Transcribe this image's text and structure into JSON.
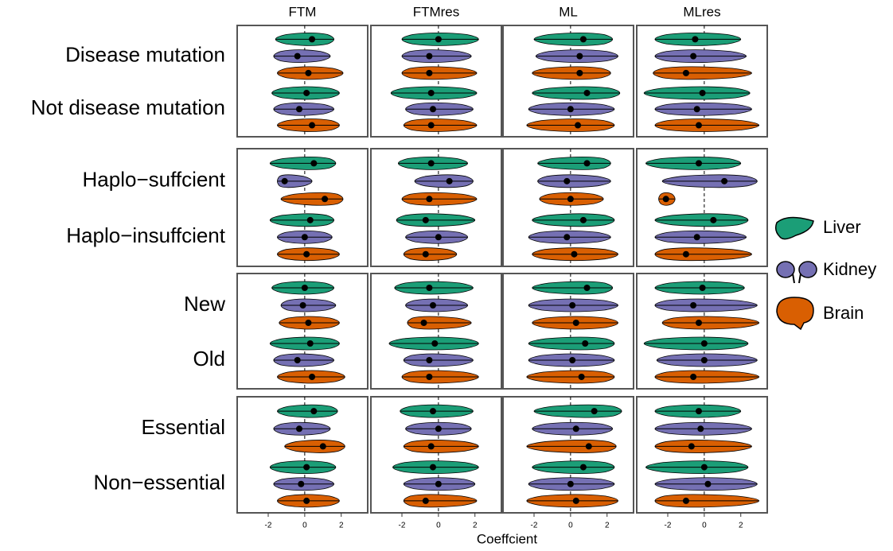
{
  "chart_data": {
    "type": "violin",
    "xlabel": "Coeffcient",
    "columns": [
      "FTM",
      "FTMres",
      "ML",
      "MLres"
    ],
    "xlim": [
      -3.7,
      3.45
    ],
    "xticks": [
      -2,
      0,
      2
    ],
    "reference_line": 0,
    "series": [
      {
        "name": "Liver",
        "color": "#1b9e77"
      },
      {
        "name": "Kidney",
        "color": "#7570b3"
      },
      {
        "name": "Brain",
        "color": "#d95f02"
      }
    ],
    "rows": [
      {
        "labels": [
          "Disease mutation",
          "Not disease mutation"
        ],
        "cells": [
          [
            [
              -1.6,
              0.4,
              1.6
            ],
            [
              -1.7,
              -0.4,
              1.4
            ],
            [
              -1.5,
              0.2,
              2.1
            ],
            [
              -1.8,
              0.1,
              1.9
            ],
            [
              -1.7,
              -0.3,
              1.6
            ],
            [
              -1.5,
              0.4,
              1.9
            ]
          ],
          [
            [
              -2,
              0,
              2.2
            ],
            [
              -2,
              -0.5,
              1.8
            ],
            [
              -2,
              -0.5,
              2.1
            ],
            [
              -2.6,
              -0.4,
              2.1
            ],
            [
              -1.8,
              -0.3,
              1.9
            ],
            [
              -1.9,
              -0.4,
              2.1
            ]
          ],
          [
            [
              -2,
              0.7,
              2.3
            ],
            [
              -1.9,
              0.5,
              2.6
            ],
            [
              -2.1,
              0.5,
              2.2
            ],
            [
              -2.1,
              0.9,
              2.7
            ],
            [
              -2.3,
              0,
              2.4
            ],
            [
              -2.4,
              0.4,
              2.4
            ]
          ],
          [
            [
              -2.7,
              -0.5,
              2
            ],
            [
              -2.7,
              -0.6,
              2.3
            ],
            [
              -2.8,
              -1,
              2.6
            ],
            [
              -3.3,
              -0.1,
              2.5
            ],
            [
              -2.7,
              -0.4,
              2.6
            ],
            [
              -2.7,
              -0.3,
              3
            ]
          ]
        ]
      },
      {
        "labels": [
          "Haplo−suffcient",
          "Haplo−insuffcient"
        ],
        "cells": [
          [
            [
              -1.9,
              0.5,
              1.7
            ],
            [
              -1.5,
              -1.1,
              0.4
            ],
            [
              -1.3,
              1.1,
              2.1
            ],
            [
              -1.9,
              0.3,
              1.6
            ],
            [
              -1.5,
              0,
              1.5
            ],
            [
              -1.5,
              0.1,
              1.9
            ]
          ],
          [
            [
              -2.2,
              -0.4,
              1.6
            ],
            [
              -1.3,
              0.6,
              1.9
            ],
            [
              -2,
              -0.5,
              2.1
            ],
            [
              -2.3,
              -0.7,
              2
            ],
            [
              -1.8,
              0,
              1.6
            ],
            [
              -1.9,
              -0.7,
              1
            ]
          ],
          [
            [
              -1.8,
              0.9,
              2.2
            ],
            [
              -1.8,
              -0.2,
              2.2
            ],
            [
              -1.7,
              0,
              1.8
            ],
            [
              -2.1,
              0.7,
              2.4
            ],
            [
              -2.3,
              -0.2,
              2.2
            ],
            [
              -2.1,
              0.2,
              2.6
            ]
          ],
          [
            [
              -3.2,
              -0.3,
              2
            ],
            [
              -2.3,
              1.1,
              2.9
            ],
            [
              -2.5,
              -2.1,
              -1.6
            ],
            [
              -2.7,
              0.5,
              2.4
            ],
            [
              -2.7,
              -0.4,
              2.3
            ],
            [
              -2.7,
              -1,
              2.6
            ]
          ]
        ]
      },
      {
        "labels": [
          "New",
          "Old"
        ],
        "cells": [
          [
            [
              -1.8,
              0,
              1.6
            ],
            [
              -1.3,
              -0.1,
              1.7
            ],
            [
              -1.4,
              0.2,
              1.9
            ],
            [
              -1.9,
              0.3,
              1.9
            ],
            [
              -1.7,
              -0.4,
              1.6
            ],
            [
              -1.5,
              0.4,
              2.2
            ]
          ],
          [
            [
              -2.4,
              -0.5,
              1.9
            ],
            [
              -1.8,
              -0.3,
              1.6
            ],
            [
              -1.7,
              -0.8,
              1.8
            ],
            [
              -2.7,
              -0.2,
              2.2
            ],
            [
              -1.9,
              -0.5,
              1.9
            ],
            [
              -2,
              -0.5,
              2.2
            ]
          ],
          [
            [
              -2.1,
              0.9,
              2.3
            ],
            [
              -2.3,
              0.1,
              2.6
            ],
            [
              -2.1,
              0.3,
              2.6
            ],
            [
              -2.3,
              0.8,
              2.4
            ],
            [
              -2.3,
              0.1,
              2.4
            ],
            [
              -2.4,
              0.6,
              2.4
            ]
          ],
          [
            [
              -2.7,
              -0.1,
              2.2
            ],
            [
              -2.7,
              -0.6,
              2.9
            ],
            [
              -2.3,
              -0.3,
              3
            ],
            [
              -3.3,
              0,
              2.4
            ],
            [
              -2.6,
              0,
              2.9
            ],
            [
              -2.7,
              -0.6,
              3
            ]
          ]
        ]
      },
      {
        "labels": [
          "Essential",
          "Non−essential"
        ],
        "cells": [
          [
            [
              -1.5,
              0.5,
              1.8
            ],
            [
              -1.7,
              -0.3,
              1.4
            ],
            [
              -1.1,
              1,
              2.2
            ],
            [
              -1.9,
              0.1,
              1.7
            ],
            [
              -1.7,
              -0.2,
              1.6
            ],
            [
              -1.5,
              0.1,
              1.9
            ]
          ],
          [
            [
              -2.1,
              -0.3,
              1.9
            ],
            [
              -1.8,
              0,
              1.8
            ],
            [
              -1.9,
              -0.4,
              2.2
            ],
            [
              -2.5,
              -0.3,
              2.2
            ],
            [
              -1.9,
              0,
              2
            ],
            [
              -1.9,
              -0.7,
              2.1
            ]
          ],
          [
            [
              -2,
              1.3,
              2.8
            ],
            [
              -2.1,
              0.3,
              2.3
            ],
            [
              -2.4,
              1,
              2.5
            ],
            [
              -2.1,
              0.7,
              2.4
            ],
            [
              -2.3,
              0,
              2.4
            ],
            [
              -2.4,
              0.3,
              2.6
            ]
          ],
          [
            [
              -2.7,
              -0.3,
              2
            ],
            [
              -2.7,
              -0.2,
              2.6
            ],
            [
              -2.7,
              -0.7,
              2.6
            ],
            [
              -3.2,
              0,
              2.4
            ],
            [
              -2.7,
              0.2,
              2.9
            ],
            [
              -2.7,
              -1,
              3
            ]
          ]
        ]
      }
    ]
  }
}
